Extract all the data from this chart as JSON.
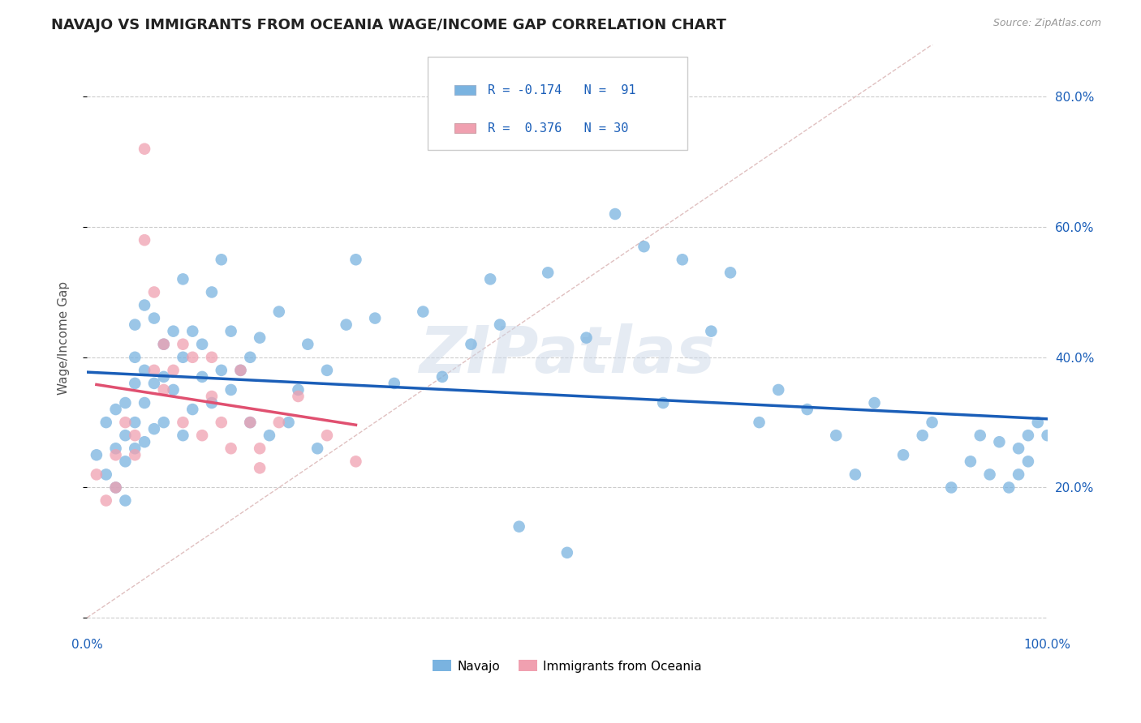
{
  "title": "NAVAJO VS IMMIGRANTS FROM OCEANIA WAGE/INCOME GAP CORRELATION CHART",
  "source": "Source: ZipAtlas.com",
  "ylabel": "Wage/Income Gap",
  "xlim": [
    0.0,
    1.0
  ],
  "ylim": [
    -0.02,
    0.88
  ],
  "xtick_positions": [
    0.0,
    0.1,
    0.2,
    0.3,
    0.4,
    0.5,
    0.6,
    0.7,
    0.8,
    0.9,
    1.0
  ],
  "xticklabels": [
    "0.0%",
    "",
    "",
    "",
    "",
    "",
    "",
    "",
    "",
    "",
    "100.0%"
  ],
  "ytick_positions": [
    0.0,
    0.2,
    0.4,
    0.6,
    0.8
  ],
  "yticklabels": [
    "",
    "20.0%",
    "40.0%",
    "60.0%",
    "80.0%"
  ],
  "navajo_color": "#7ab3e0",
  "oceania_color": "#f0a0b0",
  "line_navajo_color": "#1a5eb8",
  "line_oceania_color": "#e05070",
  "diagonal_color": "#e0c0c0",
  "watermark": "ZIPatlas",
  "background_color": "#ffffff",
  "navajo_x": [
    0.01,
    0.02,
    0.02,
    0.03,
    0.03,
    0.03,
    0.04,
    0.04,
    0.04,
    0.04,
    0.05,
    0.05,
    0.05,
    0.05,
    0.05,
    0.06,
    0.06,
    0.06,
    0.06,
    0.07,
    0.07,
    0.07,
    0.08,
    0.08,
    0.08,
    0.09,
    0.09,
    0.1,
    0.1,
    0.1,
    0.11,
    0.11,
    0.12,
    0.12,
    0.13,
    0.13,
    0.14,
    0.14,
    0.15,
    0.15,
    0.16,
    0.17,
    0.17,
    0.18,
    0.19,
    0.2,
    0.21,
    0.22,
    0.23,
    0.24,
    0.25,
    0.27,
    0.28,
    0.3,
    0.32,
    0.35,
    0.37,
    0.4,
    0.42,
    0.43,
    0.45,
    0.48,
    0.5,
    0.52,
    0.55,
    0.58,
    0.6,
    0.62,
    0.65,
    0.67,
    0.7,
    0.72,
    0.75,
    0.78,
    0.8,
    0.82,
    0.85,
    0.87,
    0.88,
    0.9,
    0.92,
    0.93,
    0.94,
    0.95,
    0.96,
    0.97,
    0.97,
    0.98,
    0.98,
    0.99,
    1.0
  ],
  "navajo_y": [
    0.25,
    0.22,
    0.3,
    0.2,
    0.26,
    0.32,
    0.18,
    0.24,
    0.28,
    0.33,
    0.26,
    0.3,
    0.36,
    0.4,
    0.45,
    0.27,
    0.33,
    0.38,
    0.48,
    0.29,
    0.36,
    0.46,
    0.3,
    0.37,
    0.42,
    0.35,
    0.44,
    0.28,
    0.4,
    0.52,
    0.32,
    0.44,
    0.37,
    0.42,
    0.33,
    0.5,
    0.38,
    0.55,
    0.35,
    0.44,
    0.38,
    0.4,
    0.3,
    0.43,
    0.28,
    0.47,
    0.3,
    0.35,
    0.42,
    0.26,
    0.38,
    0.45,
    0.55,
    0.46,
    0.36,
    0.47,
    0.37,
    0.42,
    0.52,
    0.45,
    0.14,
    0.53,
    0.1,
    0.43,
    0.62,
    0.57,
    0.33,
    0.55,
    0.44,
    0.53,
    0.3,
    0.35,
    0.32,
    0.28,
    0.22,
    0.33,
    0.25,
    0.28,
    0.3,
    0.2,
    0.24,
    0.28,
    0.22,
    0.27,
    0.2,
    0.22,
    0.26,
    0.24,
    0.28,
    0.3,
    0.28
  ],
  "oceania_x": [
    0.01,
    0.02,
    0.03,
    0.03,
    0.04,
    0.05,
    0.05,
    0.06,
    0.06,
    0.07,
    0.07,
    0.08,
    0.08,
    0.09,
    0.1,
    0.1,
    0.11,
    0.12,
    0.13,
    0.13,
    0.14,
    0.15,
    0.16,
    0.17,
    0.18,
    0.18,
    0.2,
    0.22,
    0.25,
    0.28
  ],
  "oceania_y": [
    0.22,
    0.18,
    0.25,
    0.2,
    0.3,
    0.25,
    0.28,
    0.72,
    0.58,
    0.38,
    0.5,
    0.35,
    0.42,
    0.38,
    0.42,
    0.3,
    0.4,
    0.28,
    0.34,
    0.4,
    0.3,
    0.26,
    0.38,
    0.3,
    0.23,
    0.26,
    0.3,
    0.34,
    0.28,
    0.24
  ]
}
